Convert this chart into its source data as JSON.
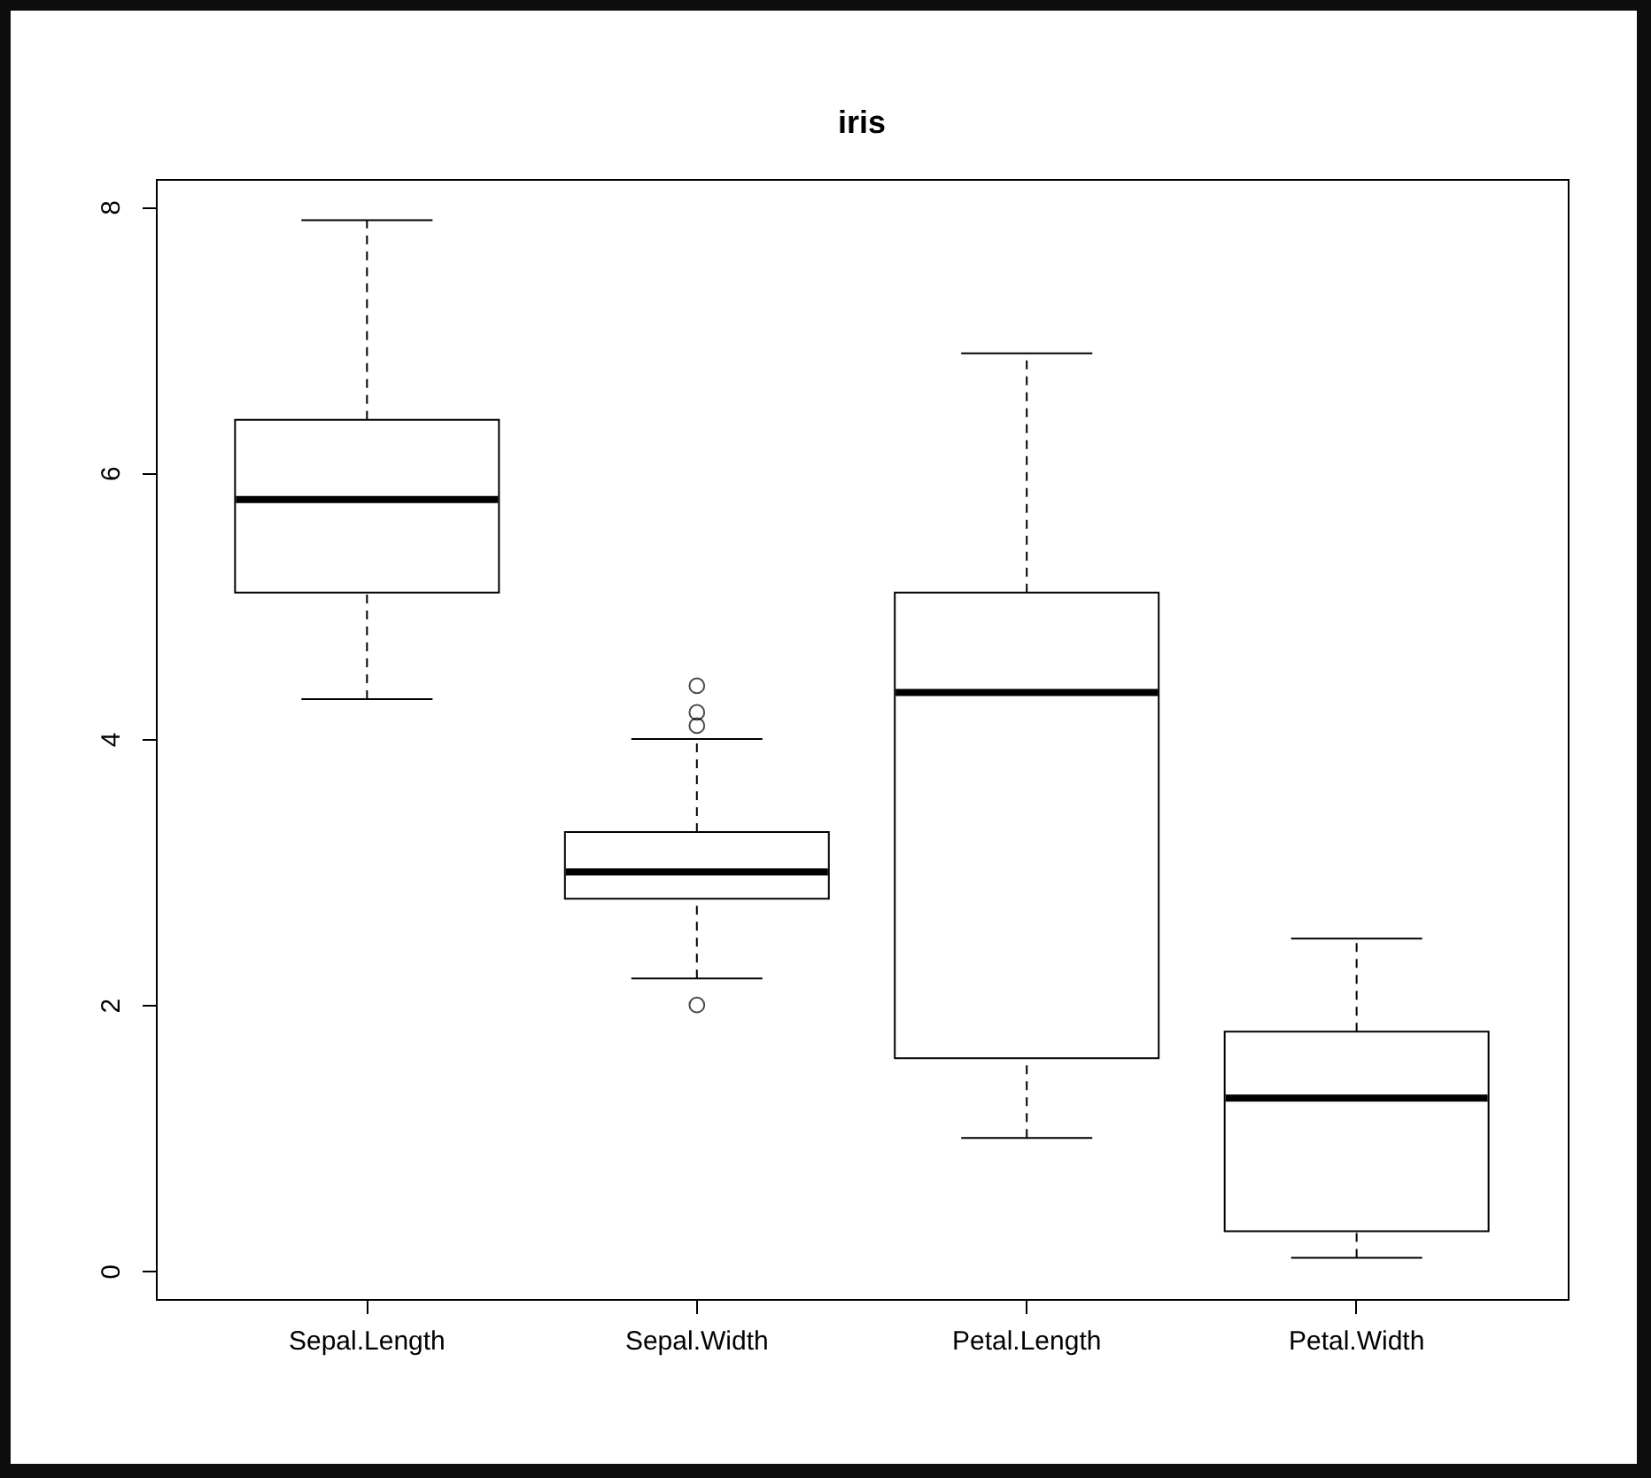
{
  "chart_data": {
    "type": "box",
    "title": "iris",
    "categories": [
      "Sepal.Length",
      "Sepal.Width",
      "Petal.Length",
      "Petal.Width"
    ],
    "boxes": [
      {
        "low": 4.3,
        "q1": 5.1,
        "median": 5.8,
        "q3": 6.4,
        "high": 7.9
      },
      {
        "low": 2.2,
        "q1": 2.8,
        "median": 3.0,
        "q3": 3.3,
        "high": 4.0,
        "outliers": [
          4.4,
          4.1,
          4.2,
          2.0
        ]
      },
      {
        "low": 1.0,
        "q1": 1.6,
        "median": 4.35,
        "q3": 5.1,
        "high": 6.9
      },
      {
        "low": 0.1,
        "q1": 0.3,
        "median": 1.3,
        "q3": 1.8,
        "high": 2.5
      }
    ],
    "ylim": [
      -0.21,
      8.21
    ],
    "yticks": [
      0,
      2,
      4,
      6,
      8
    ],
    "grid": false,
    "marker": "circle"
  }
}
